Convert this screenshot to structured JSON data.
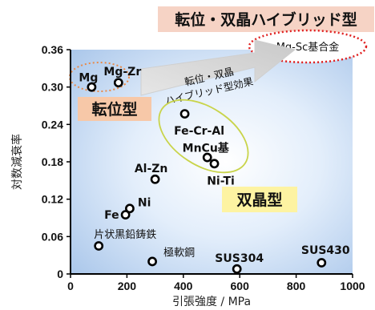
{
  "chart_data": {
    "type": "scatter",
    "title": "転位・双晶ハイブリッド型",
    "xlabel": "引張強度 / MPa",
    "ylabel": "対数減衰率",
    "xlim": [
      0,
      1000
    ],
    "ylim": [
      0,
      0.36
    ],
    "x_ticks": [
      0,
      200,
      400,
      600,
      800,
      1000
    ],
    "y_ticks": [
      0,
      0.06,
      0.12,
      0.18,
      0.24,
      0.3,
      0.36
    ],
    "x_tick_labels": [
      "0",
      "200",
      "400",
      "600",
      "800",
      "1000"
    ],
    "y_tick_labels": [
      "0",
      "0.06",
      "0.12",
      "0.18",
      "0.24",
      "0.30",
      "0.36"
    ],
    "points": [
      {
        "label": "Mg",
        "x": 75,
        "y": 0.3
      },
      {
        "label": "Mg-Zr",
        "x": 170,
        "y": 0.307
      },
      {
        "label": "Fe-Cr-Al",
        "x": 405,
        "y": 0.257
      },
      {
        "label": "MnCu基",
        "x": 485,
        "y": 0.187
      },
      {
        "label": "Ni-Ti",
        "x": 510,
        "y": 0.177
      },
      {
        "label": "Al-Zn",
        "x": 300,
        "y": 0.152
      },
      {
        "label": "Ni",
        "x": 210,
        "y": 0.105
      },
      {
        "label": "Fe",
        "x": 195,
        "y": 0.095
      },
      {
        "label": "片状黒鉛鋳鉄",
        "x": 100,
        "y": 0.045
      },
      {
        "label": "極軟鋼",
        "x": 290,
        "y": 0.02
      },
      {
        "label": "SUS304",
        "x": 590,
        "y": 0.008
      },
      {
        "label": "SUS430",
        "x": 890,
        "y": 0.018
      }
    ],
    "annotations": {
      "title_banner": "転位・双晶ハイブリッド型",
      "target_bubble": "Mg-Sc基合金",
      "arrow_text_line1": "転位・双晶",
      "arrow_text_line2": "ハイブリッド型効果",
      "dislocation_type": "転位型",
      "twin_type": "双晶型"
    },
    "grid": false
  },
  "colors": {
    "title_banner_bg": "#f6d3c5",
    "orange_highlight": "#f7c8a8",
    "yellow_highlight": "#fdf3a2",
    "ellipse_red": "#e02020",
    "ellipse_orange": "#e88a4a",
    "ellipse_yellowgreen": "#c9d44a",
    "plot_bg_center": "#ffffff",
    "plot_bg_edge": "#a9c6ea"
  }
}
